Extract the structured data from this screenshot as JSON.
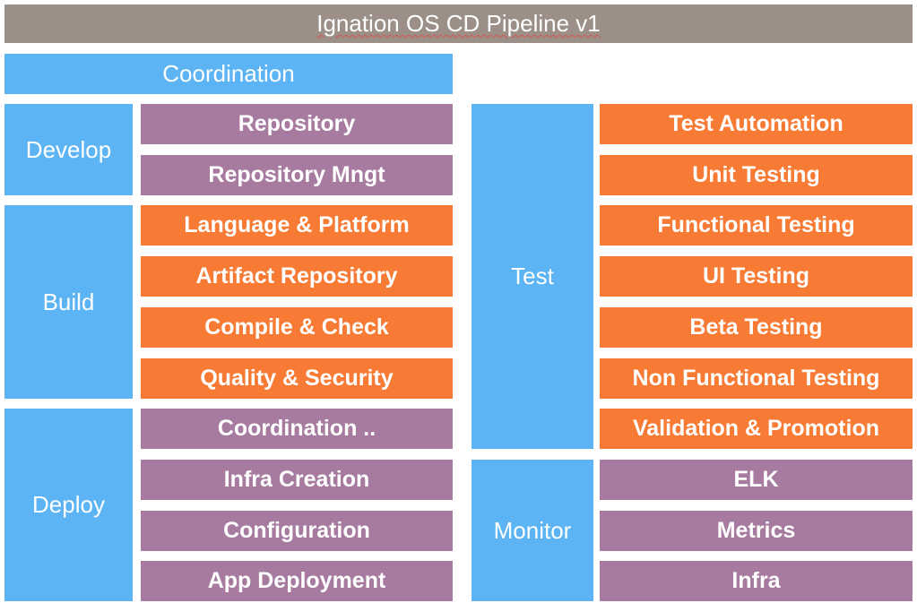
{
  "title": "Ignation OS CD Pipeline v1",
  "colors": {
    "title_bg": "#9b8f88",
    "category_blue": "#5cb4f4",
    "item_purple": "#a77a9f",
    "item_orange": "#f77b35"
  },
  "coordination": {
    "label": "Coordination"
  },
  "develop": {
    "label": "Develop",
    "items": [
      "Repository",
      "Repository Mngt"
    ]
  },
  "build": {
    "label": "Build",
    "items": [
      "Language & Platform",
      "Artifact Repository",
      "Compile & Check",
      "Quality & Security"
    ]
  },
  "deploy": {
    "label": "Deploy",
    "items": [
      "Coordination ..",
      "Infra Creation",
      "Configuration",
      "App Deployment"
    ]
  },
  "test": {
    "label": "Test",
    "items": [
      "Test Automation",
      "Unit Testing",
      "Functional Testing",
      "UI Testing",
      "Beta Testing",
      "Non Functional Testing",
      "Validation & Promotion"
    ]
  },
  "monitor": {
    "label": "Monitor",
    "items": [
      "ELK",
      "Metrics",
      "Infra"
    ]
  }
}
